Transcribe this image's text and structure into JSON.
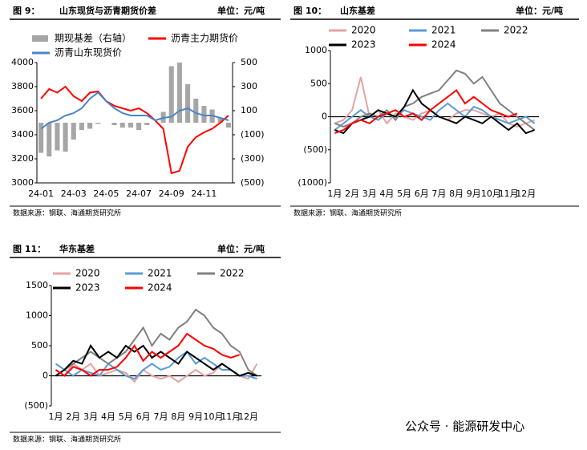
{
  "chart_data": [
    {
      "type": "bar_line",
      "figure": "图 9：",
      "title": "山东现货与沥青期货价差",
      "unit": "单位：元/吨",
      "source": "数据来源：钢联、海通期货研究所",
      "categories": [
        "24-01",
        null,
        null,
        null,
        "24-03",
        null,
        null,
        null,
        "24-05",
        null,
        null,
        null,
        "24-07",
        null,
        null,
        null,
        "24-09",
        null,
        null,
        null,
        "24-11",
        null,
        null,
        null
      ],
      "ylim": [
        3000,
        4000
      ],
      "yticks": [
        3000,
        3200,
        3400,
        3600,
        3800,
        4000
      ],
      "y2lim": [
        -500,
        500
      ],
      "y2ticks": [
        {
          "value": -500,
          "label": "(500)"
        },
        {
          "value": -300,
          "label": "(300)"
        },
        {
          "value": -100,
          "label": "(100)"
        },
        100,
        300,
        500
      ],
      "series": [
        {
          "name": "期现基差（右轴）",
          "kind": "bar",
          "axis": "y2",
          "color": "#a6a6a6",
          "values": [
            -250,
            -280,
            -230,
            -240,
            -140,
            -60,
            -50,
            -10,
            0,
            -20,
            -40,
            -40,
            -60,
            -20,
            0,
            90,
            470,
            500,
            320,
            200,
            140,
            110,
            40,
            -40
          ]
        },
        {
          "name": "沥青主力期货价",
          "kind": "line",
          "color": "#ff0000",
          "values": [
            3700,
            3780,
            3750,
            3800,
            3720,
            3680,
            3750,
            3760,
            3680,
            3640,
            3620,
            3600,
            3620,
            3580,
            3520,
            3450,
            3080,
            3100,
            3300,
            3380,
            3420,
            3450,
            3500,
            3560
          ]
        },
        {
          "name": "沥青山东现货价",
          "kind": "line",
          "color": "#4a86c8",
          "values": [
            3450,
            3500,
            3520,
            3560,
            3580,
            3620,
            3700,
            3750,
            3680,
            3620,
            3580,
            3560,
            3560,
            3560,
            3520,
            3540,
            3550,
            3600,
            3620,
            3580,
            3560,
            3560,
            3540,
            3520
          ]
        }
      ]
    },
    {
      "type": "line",
      "figure": "图 10：",
      "title": "山东基差",
      "unit": "单位：元/吨",
      "source": "数据来源：钢联、海通期货研究所",
      "categories": [
        "1月",
        null,
        "2月",
        null,
        "3月",
        null,
        "4月",
        null,
        "5月",
        null,
        "6月",
        null,
        "7月",
        null,
        "8月",
        null,
        "9月",
        null,
        "10月",
        null,
        "11月",
        null,
        "12月",
        null
      ],
      "ylim": [
        -1000,
        1000
      ],
      "yticks": [
        {
          "value": -1000,
          "label": "(1000)"
        },
        {
          "value": -500,
          "label": "(500)"
        },
        0,
        500,
        1000
      ],
      "series": [
        {
          "name": "2020",
          "color": "#e6a3a3",
          "values": [
            -100,
            -50,
            100,
            600,
            0,
            100,
            -100,
            50,
            0,
            -50,
            50,
            100,
            0,
            -50,
            50,
            100,
            100,
            50,
            0,
            50,
            -100,
            -150,
            -100,
            -50
          ]
        },
        {
          "name": "2021",
          "color": "#5b9bd5",
          "values": [
            -200,
            -100,
            0,
            100,
            0,
            -50,
            50,
            0,
            100,
            50,
            0,
            -50,
            100,
            200,
            100,
            0,
            150,
            100,
            0,
            -50,
            -100,
            -50,
            0,
            -100
          ]
        },
        {
          "name": "2022",
          "color": "#808080",
          "values": [
            -100,
            -150,
            -100,
            0,
            50,
            0,
            100,
            -50,
            150,
            200,
            300,
            350,
            400,
            550,
            700,
            650,
            500,
            600,
            400,
            200,
            100,
            0,
            -100,
            -200
          ]
        },
        {
          "name": "2023",
          "color": "#000000",
          "values": [
            -200,
            -250,
            -100,
            -50,
            0,
            100,
            50,
            0,
            150,
            400,
            200,
            100,
            0,
            -50,
            -100,
            0,
            -50,
            -100,
            0,
            -100,
            -200,
            -100,
            -250,
            -200
          ]
        },
        {
          "name": "2024",
          "color": "#ff0000",
          "values": [
            -250,
            -200,
            -100,
            -50,
            -100,
            0,
            50,
            100,
            0,
            50,
            -50,
            100,
            200,
            300,
            400,
            200,
            300,
            200,
            100,
            50,
            0,
            50,
            null,
            null
          ]
        }
      ]
    },
    {
      "type": "line",
      "figure": "图 11：",
      "title": "华东基差",
      "unit": "单位：元/吨",
      "source": "数据来源：钢联、海通期货研究所",
      "categories": [
        "1月",
        null,
        "2月",
        null,
        "3月",
        null,
        "4月",
        null,
        "5月",
        null,
        "6月",
        null,
        "7月",
        null,
        "8月",
        null,
        "9月",
        null,
        "10月",
        null,
        "11月",
        null,
        "12月",
        null
      ],
      "ylim": [
        -500,
        1500
      ],
      "yticks": [
        {
          "value": -500,
          "label": "(500)"
        },
        0,
        500,
        1000,
        1500
      ],
      "series": [
        {
          "name": "2020",
          "color": "#e6a3a3",
          "values": [
            100,
            0,
            200,
            100,
            200,
            0,
            50,
            100,
            50,
            -100,
            100,
            0,
            -50,
            0,
            -100,
            0,
            100,
            0,
            50,
            200,
            100,
            0,
            -50,
            200
          ]
        },
        {
          "name": "2021",
          "color": "#5b9bd5",
          "values": [
            200,
            100,
            0,
            100,
            50,
            0,
            200,
            100,
            0,
            -50,
            100,
            200,
            100,
            150,
            300,
            400,
            200,
            300,
            200,
            100,
            100,
            0,
            0,
            -50
          ]
        },
        {
          "name": "2022",
          "color": "#808080",
          "values": [
            0,
            100,
            200,
            300,
            400,
            300,
            200,
            300,
            400,
            600,
            800,
            500,
            700,
            600,
            800,
            900,
            1100,
            1000,
            800,
            700,
            500,
            400,
            100,
            0
          ]
        },
        {
          "name": "2023",
          "color": "#000000",
          "values": [
            0,
            100,
            250,
            200,
            500,
            300,
            400,
            300,
            500,
            400,
            500,
            300,
            400,
            300,
            200,
            400,
            300,
            200,
            100,
            200,
            100,
            0,
            50,
            0
          ]
        },
        {
          "name": "2024",
          "color": "#ff0000",
          "values": [
            100,
            0,
            150,
            100,
            0,
            100,
            100,
            150,
            300,
            500,
            250,
            400,
            300,
            400,
            500,
            700,
            600,
            500,
            450,
            350,
            300,
            350,
            null,
            null
          ]
        }
      ]
    }
  ],
  "watermark": "公众号 · 能源研发中心"
}
